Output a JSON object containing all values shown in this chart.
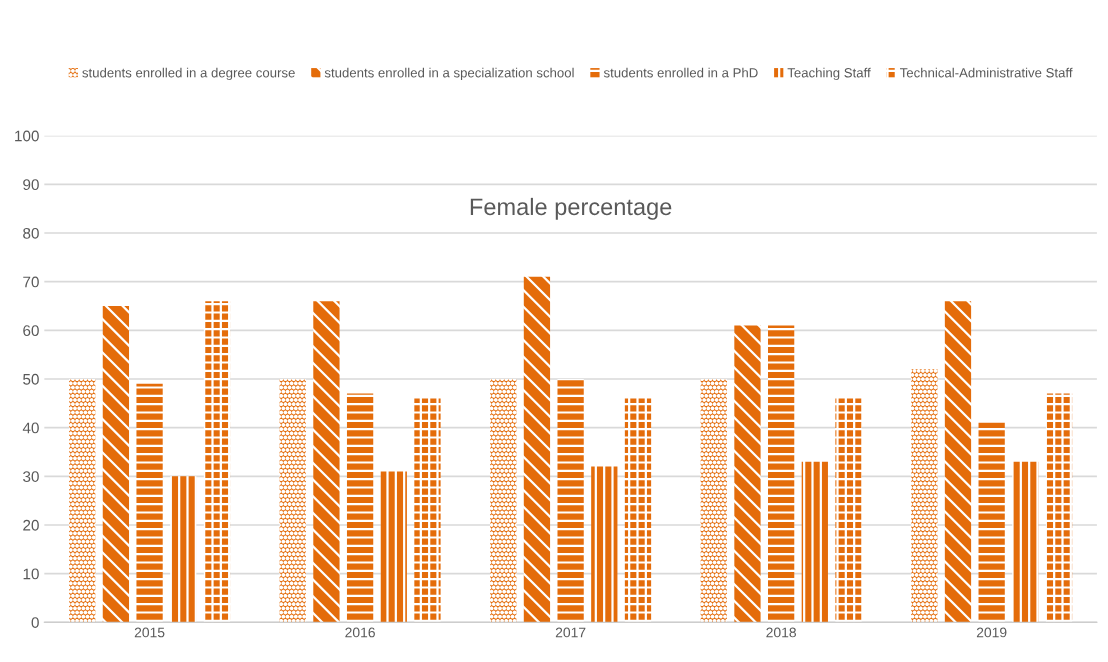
{
  "chart_data": {
    "type": "bar",
    "title": "Female percentage",
    "categories": [
      "2015",
      "2016",
      "2017",
      "2018",
      "2019"
    ],
    "series": [
      {
        "name": "students enrolled in a degree course",
        "color": "#e46c0a",
        "values": [
          50,
          50,
          50,
          50,
          52
        ]
      },
      {
        "name": "students enrolled in a specialization school",
        "color": "#e46c0a",
        "values": [
          65,
          66,
          71,
          61,
          66
        ]
      },
      {
        "name": "students enrolled in a PhD",
        "color": "#e46c0a",
        "values": [
          49,
          47,
          50,
          61,
          41
        ]
      },
      {
        "name": "Teaching Staff",
        "color": "#e46c0a",
        "values": [
          30,
          31,
          32,
          33,
          33
        ]
      },
      {
        "name": "Technical-Administrative Staff",
        "color": "#e46c0a",
        "values": [
          66,
          46,
          46,
          46,
          47
        ]
      }
    ],
    "ylim": [
      0,
      100
    ],
    "yticks": [
      0,
      10,
      20,
      30,
      40,
      50,
      60,
      70,
      80,
      90,
      100
    ],
    "grid": "y",
    "legend": "top"
  }
}
